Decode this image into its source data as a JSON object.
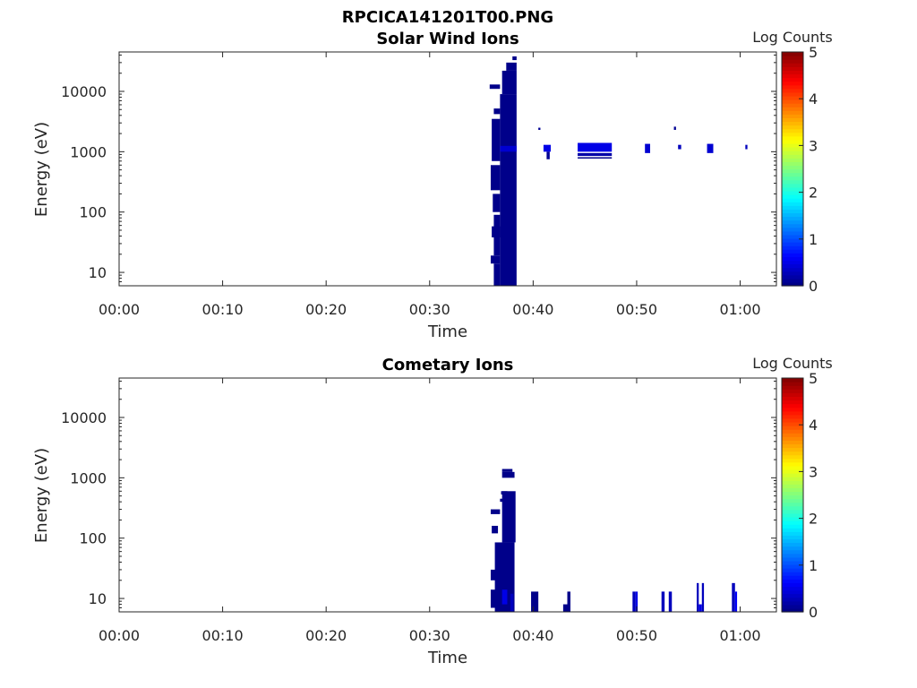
{
  "figure": {
    "title": "RPCICA141201T00.PNG"
  },
  "colorbar": {
    "label": "Log Counts",
    "range": [
      0,
      5
    ],
    "ticks": [
      "0",
      "1",
      "2",
      "3",
      "4",
      "5"
    ],
    "colormap": "jet"
  },
  "chart_data": [
    {
      "type": "heatmap",
      "title": "Solar Wind Ions",
      "xlabel": "Time",
      "ylabel": "Energy (eV)",
      "yscale": "log",
      "ylim": [
        6,
        45000
      ],
      "xlim_minutes": [
        0,
        63.5
      ],
      "x_ticks": [
        {
          "value": 0,
          "label": "00:00"
        },
        {
          "value": 10,
          "label": "00:10"
        },
        {
          "value": 20,
          "label": "00:20"
        },
        {
          "value": 30,
          "label": "00:30"
        },
        {
          "value": 40,
          "label": "00:40"
        },
        {
          "value": 50,
          "label": "00:50"
        },
        {
          "value": 60,
          "label": "01:00"
        }
      ],
      "y_ticks": [
        {
          "value": 10,
          "label": "10"
        },
        {
          "value": 100,
          "label": "100"
        },
        {
          "value": 1000,
          "label": "1000"
        },
        {
          "value": 10000,
          "label": "10000"
        }
      ],
      "cells": [
        {
          "t0": 36.8,
          "t1": 38.4,
          "e0": 6,
          "e1": 9000,
          "c": 0.05
        },
        {
          "t0": 36.8,
          "t1": 38.4,
          "e0": 1000,
          "e1": 1250,
          "c": 0.4
        },
        {
          "t0": 37.0,
          "t1": 38.4,
          "e0": 9000,
          "e1": 22000,
          "c": 0.05
        },
        {
          "t0": 37.4,
          "t1": 38.4,
          "e0": 22000,
          "e1": 30000,
          "c": 0.05
        },
        {
          "t0": 38.0,
          "t1": 38.4,
          "e0": 33000,
          "e1": 38000,
          "c": 0.05
        },
        {
          "t0": 36.2,
          "t1": 36.8,
          "e0": 6,
          "e1": 14,
          "c": 0.05
        },
        {
          "t0": 35.9,
          "t1": 36.8,
          "e0": 14,
          "e1": 19,
          "c": 0.05
        },
        {
          "t0": 36.2,
          "t1": 36.8,
          "e0": 19,
          "e1": 90,
          "c": 0.05
        },
        {
          "t0": 36.0,
          "t1": 36.8,
          "e0": 38,
          "e1": 58,
          "c": 0.05
        },
        {
          "t0": 36.1,
          "t1": 36.8,
          "e0": 100,
          "e1": 200,
          "c": 0.05
        },
        {
          "t0": 35.9,
          "t1": 36.8,
          "e0": 230,
          "e1": 600,
          "c": 0.05
        },
        {
          "t0": 36.0,
          "t1": 36.8,
          "e0": 700,
          "e1": 3500,
          "c": 0.05
        },
        {
          "t0": 36.2,
          "t1": 36.8,
          "e0": 4200,
          "e1": 5200,
          "c": 0.05
        },
        {
          "t0": 35.8,
          "t1": 36.8,
          "e0": 11000,
          "e1": 13000,
          "c": 0.05
        },
        {
          "t0": 41.0,
          "t1": 41.7,
          "e0": 1000,
          "e1": 1300,
          "c": 0.5
        },
        {
          "t0": 41.3,
          "t1": 41.6,
          "e0": 750,
          "e1": 1000,
          "c": 0.1
        },
        {
          "t0": 40.5,
          "t1": 40.7,
          "e0": 2300,
          "e1": 2500,
          "c": 0.1
        },
        {
          "t0": 44.3,
          "t1": 47.6,
          "e0": 1000,
          "e1": 1400,
          "c": 0.5
        },
        {
          "t0": 44.3,
          "t1": 47.6,
          "e0": 850,
          "e1": 950,
          "c": 0.2
        },
        {
          "t0": 44.3,
          "t1": 47.6,
          "e0": 770,
          "e1": 810,
          "c": 0.05
        },
        {
          "t0": 50.8,
          "t1": 51.3,
          "e0": 950,
          "e1": 1350,
          "c": 0.4
        },
        {
          "t0": 53.6,
          "t1": 53.8,
          "e0": 2300,
          "e1": 2600,
          "c": 0.1
        },
        {
          "t0": 54.0,
          "t1": 54.3,
          "e0": 1100,
          "e1": 1300,
          "c": 0.3
        },
        {
          "t0": 56.8,
          "t1": 57.4,
          "e0": 950,
          "e1": 1350,
          "c": 0.4
        },
        {
          "t0": 60.5,
          "t1": 60.7,
          "e0": 1100,
          "e1": 1300,
          "c": 0.3
        }
      ]
    },
    {
      "type": "heatmap",
      "title": "Cometary Ions",
      "xlabel": "Time",
      "ylabel": "Energy (eV)",
      "yscale": "log",
      "ylim": [
        6,
        45000
      ],
      "xlim_minutes": [
        0,
        63.5
      ],
      "x_ticks": [
        {
          "value": 0,
          "label": "00:00"
        },
        {
          "value": 10,
          "label": "00:10"
        },
        {
          "value": 20,
          "label": "00:20"
        },
        {
          "value": 30,
          "label": "00:30"
        },
        {
          "value": 40,
          "label": "00:40"
        },
        {
          "value": 50,
          "label": "00:50"
        },
        {
          "value": 60,
          "label": "01:00"
        }
      ],
      "y_ticks": [
        {
          "value": 10,
          "label": "10"
        },
        {
          "value": 100,
          "label": "100"
        },
        {
          "value": 1000,
          "label": "1000"
        },
        {
          "value": 10000,
          "label": "10000"
        }
      ],
      "cells": [
        {
          "t0": 36.3,
          "t1": 38.2,
          "e0": 6,
          "e1": 85,
          "c": 0.05
        },
        {
          "t0": 37.0,
          "t1": 38.3,
          "e0": 85,
          "e1": 600,
          "c": 0.05
        },
        {
          "t0": 37.0,
          "t1": 38.2,
          "e0": 1000,
          "e1": 1250,
          "c": 0.05
        },
        {
          "t0": 37.0,
          "t1": 38.0,
          "e0": 1250,
          "e1": 1400,
          "c": 0.05
        },
        {
          "t0": 35.9,
          "t1": 36.4,
          "e0": 20,
          "e1": 30,
          "c": 0.05
        },
        {
          "t0": 35.9,
          "t1": 36.5,
          "e0": 7,
          "e1": 14,
          "c": 0.05
        },
        {
          "t0": 36.0,
          "t1": 36.6,
          "e0": 120,
          "e1": 160,
          "c": 0.05
        },
        {
          "t0": 35.9,
          "t1": 36.8,
          "e0": 250,
          "e1": 300,
          "c": 0.05
        },
        {
          "t0": 36.8,
          "t1": 37.4,
          "e0": 400,
          "e1": 450,
          "c": 0.05
        },
        {
          "t0": 36.9,
          "t1": 37.5,
          "e0": 530,
          "e1": 600,
          "c": 0.05
        },
        {
          "t0": 37.0,
          "t1": 37.5,
          "e0": 8,
          "e1": 14,
          "c": 0.5
        },
        {
          "t0": 37.8,
          "t1": 38.1,
          "e0": 6,
          "e1": 12,
          "c": 0.3
        },
        {
          "t0": 39.8,
          "t1": 40.5,
          "e0": 6,
          "e1": 13,
          "c": 0.05
        },
        {
          "t0": 42.9,
          "t1": 43.4,
          "e0": 6,
          "e1": 8,
          "c": 0.05
        },
        {
          "t0": 43.3,
          "t1": 43.6,
          "e0": 6,
          "e1": 13,
          "c": 0.05
        },
        {
          "t0": 49.6,
          "t1": 49.9,
          "e0": 6,
          "e1": 13,
          "c": 0.3
        },
        {
          "t0": 49.9,
          "t1": 50.1,
          "e0": 6,
          "e1": 13,
          "c": 0.5
        },
        {
          "t0": 52.4,
          "t1": 52.7,
          "e0": 6,
          "e1": 13,
          "c": 0.3
        },
        {
          "t0": 53.1,
          "t1": 53.4,
          "e0": 6,
          "e1": 13,
          "c": 0.3
        },
        {
          "t0": 55.8,
          "t1": 56.0,
          "e0": 6,
          "e1": 18,
          "c": 0.3
        },
        {
          "t0": 56.3,
          "t1": 56.5,
          "e0": 6,
          "e1": 18,
          "c": 0.3
        },
        {
          "t0": 56.0,
          "t1": 56.3,
          "e0": 6,
          "e1": 8,
          "c": 0.5
        },
        {
          "t0": 59.2,
          "t1": 59.5,
          "e0": 6,
          "e1": 18,
          "c": 0.3
        },
        {
          "t0": 59.5,
          "t1": 59.7,
          "e0": 6,
          "e1": 13,
          "c": 0.6
        }
      ]
    }
  ]
}
